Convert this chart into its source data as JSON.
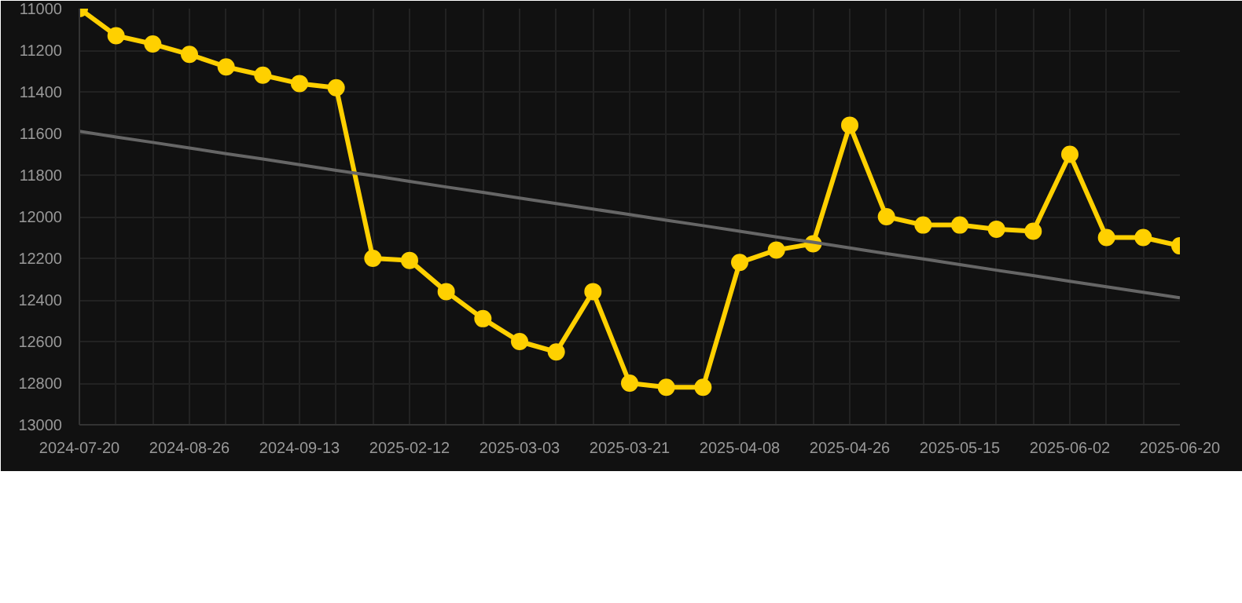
{
  "chart_data": {
    "type": "line",
    "categories": [
      "2024-07-20",
      null,
      null,
      "2024-08-26",
      null,
      null,
      "2024-09-13",
      null,
      null,
      "2025-02-12",
      null,
      null,
      "2025-03-03",
      null,
      null,
      "2025-03-21",
      null,
      null,
      "2025-04-08",
      null,
      null,
      "2025-04-26",
      null,
      null,
      "2025-05-15",
      null,
      null,
      "2025-06-02",
      null,
      null,
      "2025-06-20"
    ],
    "series": [
      {
        "color": "#ffd000",
        "marker": "circle",
        "values": [
          11000,
          11130,
          11170,
          11220,
          11280,
          11320,
          11360,
          11380,
          12200,
          12210,
          12360,
          12490,
          12600,
          12650,
          12360,
          12800,
          12820,
          12820,
          12220,
          12160,
          12130,
          11560,
          12000,
          12040,
          12040,
          12060,
          12070,
          11700,
          12100,
          12100,
          12140
        ]
      },
      {
        "color": "#666666",
        "marker": "none",
        "values": [
          11590,
          11617,
          11643,
          11670,
          11697,
          11723,
          11750,
          11777,
          11803,
          11830,
          11857,
          11883,
          11910,
          11937,
          11963,
          11990,
          12017,
          12043,
          12070,
          12097,
          12123,
          12150,
          12177,
          12203,
          12230,
          12257,
          12283,
          12310,
          12337,
          12363,
          12390
        ]
      }
    ],
    "ylim": [
      13000,
      11000
    ],
    "yticks": [
      11000,
      11200,
      11400,
      11600,
      11800,
      12000,
      12200,
      12400,
      12600,
      12800,
      13000
    ],
    "grid": true
  }
}
